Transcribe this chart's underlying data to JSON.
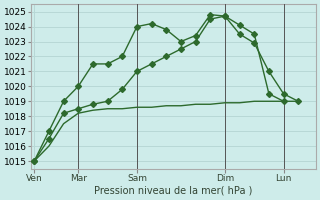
{
  "background_color": "#ceecea",
  "grid_color": "#b8d8d6",
  "line_color": "#2d6a2d",
  "xlabel": "Pression niveau de la mer( hPa )",
  "ylim": [
    1014.5,
    1025.5
  ],
  "yticks": [
    1015,
    1016,
    1017,
    1018,
    1019,
    1020,
    1021,
    1022,
    1023,
    1024,
    1025
  ],
  "xlim": [
    -0.1,
    9.6
  ],
  "vlines_x": [
    1.5,
    3.5,
    6.5,
    8.5
  ],
  "xlabels": [
    [
      0.0,
      "Ven"
    ],
    [
      1.5,
      "Mar"
    ],
    [
      3.5,
      "Sam"
    ],
    [
      6.5,
      "Dim"
    ],
    [
      8.5,
      "Lun"
    ]
  ],
  "series": [
    {
      "x": [
        0.0,
        0.5,
        1.0,
        1.5,
        2.0,
        2.5,
        3.0,
        3.5,
        4.0,
        4.5,
        5.0,
        5.5,
        6.0,
        6.5,
        7.0,
        7.5,
        8.0,
        8.5,
        9.0
      ],
      "y": [
        1015.0,
        1017.0,
        1019.0,
        1020.0,
        1021.5,
        1021.5,
        1022.0,
        1024.0,
        1024.2,
        1023.8,
        1023.0,
        1023.4,
        1024.8,
        1024.7,
        1023.5,
        1022.9,
        1021.0,
        1019.5,
        1019.0
      ],
      "marker": "D",
      "markersize": 3,
      "linewidth": 1.0
    },
    {
      "x": [
        0.0,
        0.5,
        1.0,
        1.5,
        2.0,
        2.5,
        3.0,
        3.5,
        4.0,
        4.5,
        5.0,
        5.5,
        6.0,
        6.5,
        7.0,
        7.5,
        8.0,
        8.5
      ],
      "y": [
        1015.0,
        1016.5,
        1018.2,
        1018.5,
        1018.8,
        1019.0,
        1019.8,
        1021.0,
        1021.5,
        1022.0,
        1022.5,
        1023.0,
        1024.5,
        1024.7,
        1024.1,
        1023.5,
        1019.5,
        1019.0
      ],
      "marker": "D",
      "markersize": 3,
      "linewidth": 1.0
    },
    {
      "x": [
        0.0,
        0.5,
        1.0,
        1.5,
        2.0,
        2.5,
        3.0,
        3.5,
        4.0,
        4.5,
        5.0,
        5.5,
        6.0,
        6.5,
        7.0,
        7.5,
        8.0,
        8.5,
        9.0
      ],
      "y": [
        1015.0,
        1016.0,
        1017.5,
        1018.2,
        1018.4,
        1018.5,
        1018.5,
        1018.6,
        1018.6,
        1018.7,
        1018.7,
        1018.8,
        1018.8,
        1018.9,
        1018.9,
        1019.0,
        1019.0,
        1019.0,
        1019.0
      ],
      "marker": null,
      "markersize": 0,
      "linewidth": 1.0
    }
  ]
}
